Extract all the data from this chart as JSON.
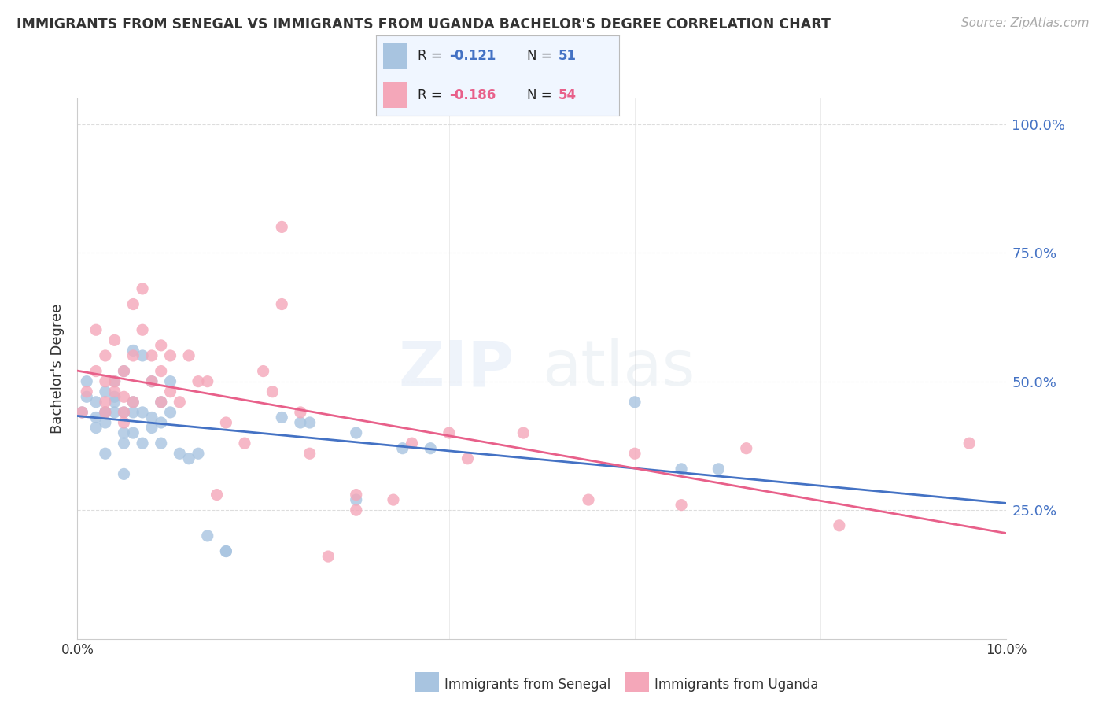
{
  "title": "IMMIGRANTS FROM SENEGAL VS IMMIGRANTS FROM UGANDA BACHELOR'S DEGREE CORRELATION CHART",
  "source": "Source: ZipAtlas.com",
  "ylabel": "Bachelor's Degree",
  "xlim": [
    0.0,
    0.1
  ],
  "ylim": [
    0.0,
    1.05
  ],
  "yticks": [
    0.25,
    0.5,
    0.75,
    1.0
  ],
  "right_yticklabels": [
    "25.0%",
    "50.0%",
    "75.0%",
    "100.0%"
  ],
  "senegal_color": "#a8c4e0",
  "uganda_color": "#f4a7b9",
  "senegal_line_color": "#4472c4",
  "uganda_line_color": "#e8608a",
  "R_senegal": -0.121,
  "N_senegal": 51,
  "R_uganda": -0.186,
  "N_uganda": 54,
  "senegal_label": "Immigrants from Senegal",
  "uganda_label": "Immigrants from Uganda",
  "watermark": "ZIPatlas",
  "senegal_scatter_x": [
    0.0005,
    0.001,
    0.001,
    0.002,
    0.002,
    0.002,
    0.003,
    0.003,
    0.003,
    0.003,
    0.003,
    0.004,
    0.004,
    0.004,
    0.004,
    0.005,
    0.005,
    0.005,
    0.005,
    0.005,
    0.006,
    0.006,
    0.006,
    0.006,
    0.007,
    0.007,
    0.007,
    0.008,
    0.008,
    0.008,
    0.009,
    0.009,
    0.009,
    0.01,
    0.01,
    0.011,
    0.012,
    0.013,
    0.014,
    0.016,
    0.016,
    0.022,
    0.024,
    0.025,
    0.03,
    0.03,
    0.035,
    0.038,
    0.06,
    0.065,
    0.069
  ],
  "senegal_scatter_y": [
    0.44,
    0.5,
    0.47,
    0.46,
    0.43,
    0.41,
    0.44,
    0.42,
    0.44,
    0.48,
    0.36,
    0.5,
    0.47,
    0.46,
    0.44,
    0.4,
    0.52,
    0.44,
    0.38,
    0.32,
    0.56,
    0.46,
    0.44,
    0.4,
    0.55,
    0.44,
    0.38,
    0.5,
    0.43,
    0.41,
    0.46,
    0.42,
    0.38,
    0.5,
    0.44,
    0.36,
    0.35,
    0.36,
    0.2,
    0.17,
    0.17,
    0.43,
    0.42,
    0.42,
    0.27,
    0.4,
    0.37,
    0.37,
    0.46,
    0.33,
    0.33
  ],
  "uganda_scatter_x": [
    0.0005,
    0.001,
    0.002,
    0.002,
    0.003,
    0.003,
    0.003,
    0.003,
    0.004,
    0.004,
    0.004,
    0.005,
    0.005,
    0.005,
    0.005,
    0.006,
    0.006,
    0.006,
    0.007,
    0.007,
    0.008,
    0.008,
    0.009,
    0.009,
    0.009,
    0.01,
    0.01,
    0.011,
    0.012,
    0.013,
    0.014,
    0.015,
    0.016,
    0.018,
    0.02,
    0.021,
    0.022,
    0.022,
    0.024,
    0.025,
    0.027,
    0.03,
    0.03,
    0.034,
    0.036,
    0.04,
    0.042,
    0.048,
    0.055,
    0.06,
    0.065,
    0.072,
    0.082,
    0.096
  ],
  "uganda_scatter_y": [
    0.44,
    0.48,
    0.6,
    0.52,
    0.44,
    0.46,
    0.55,
    0.5,
    0.48,
    0.58,
    0.5,
    0.47,
    0.52,
    0.44,
    0.42,
    0.65,
    0.55,
    0.46,
    0.68,
    0.6,
    0.55,
    0.5,
    0.57,
    0.52,
    0.46,
    0.55,
    0.48,
    0.46,
    0.55,
    0.5,
    0.5,
    0.28,
    0.42,
    0.38,
    0.52,
    0.48,
    0.8,
    0.65,
    0.44,
    0.36,
    0.16,
    0.28,
    0.25,
    0.27,
    0.38,
    0.4,
    0.35,
    0.4,
    0.27,
    0.36,
    0.26,
    0.37,
    0.22,
    0.38
  ],
  "grid_color": "#dddddd",
  "background_color": "#ffffff",
  "title_color": "#333333",
  "axis_color": "#4472c4"
}
